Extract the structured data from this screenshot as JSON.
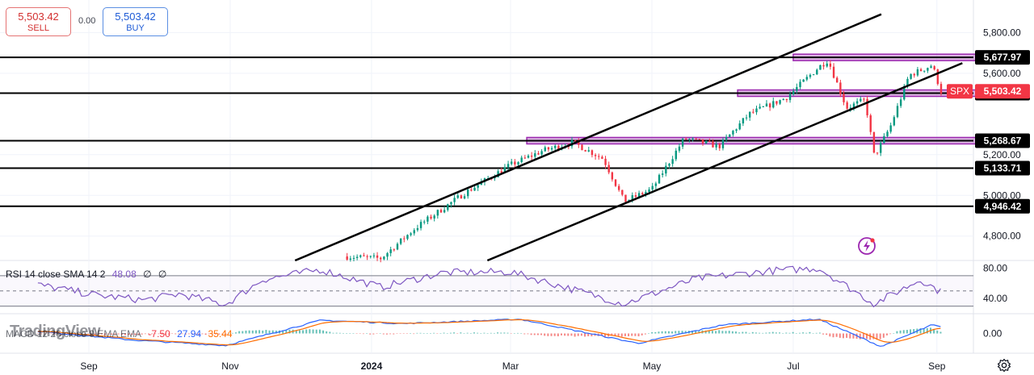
{
  "trade": {
    "sell_price": "5,503.42",
    "sell_label": "SELL",
    "buy_price": "5,503.42",
    "buy_label": "BUY",
    "spread": "0.00"
  },
  "symbol": "SPX",
  "watermark": "TradingView",
  "rsi_legend": {
    "name": "RSI 14 close SMA 14 2",
    "value": "48.08",
    "ma": "∅",
    "extra": "∅"
  },
  "macd_legend": {
    "name": "MACD 12 26 close 9 EMA EMA",
    "hist": "-7.50",
    "macd": "27.94",
    "signal": "35.44"
  },
  "colors": {
    "up": "#089981",
    "down": "#f23645",
    "level_line": "#000000",
    "zone": "#9c27b0",
    "rsi": "#7e57c2",
    "macd": "#2962ff",
    "signal": "#ff6d00",
    "price_tag": "#f23645"
  },
  "chart_data": [
    {
      "type": "candlestick",
      "x_ticks": [
        "Sep",
        "Nov",
        "2024",
        "Mar",
        "May",
        "Jul",
        "Sep"
      ],
      "y_ticks": [
        "5,800.00",
        "5,600.00",
        "5,200.00",
        "5,000.00",
        "4,800.00"
      ],
      "ylim": [
        4680,
        5960
      ],
      "last_price": 5503.42,
      "horizontal_levels": [
        {
          "value": 5677.97,
          "label": "5,677.97"
        },
        {
          "value": 5502.19,
          "label": "5,502.19"
        },
        {
          "value": 5268.67,
          "label": "5,268.67"
        },
        {
          "value": 5133.71,
          "label": "5,133.71"
        },
        {
          "value": 4946.42,
          "label": "4,946.42"
        }
      ],
      "zones": [
        {
          "value": 5677.97,
          "from": "2024-07-01",
          "to": "2024-09-30"
        },
        {
          "value": 5502.19,
          "from": "2024-06-07",
          "to": "2024-09-25"
        },
        {
          "value": 5268.67,
          "from": "2024-03-08",
          "to": "2024-09-25"
        }
      ],
      "channel": [
        {
          "from": [
            "2023-11-29",
            4680
          ],
          "to": [
            "2024-08-08",
            5890
          ]
        },
        {
          "from": [
            "2024-02-20",
            4680
          ],
          "to": [
            "2024-09-12",
            5650
          ]
        }
      ],
      "series": [
        {
          "x": "2023-12-20",
          "y": 4700
        },
        {
          "x": "2024-01-05",
          "y": 4690
        },
        {
          "x": "2024-01-20",
          "y": 4840
        },
        {
          "x": "2024-02-10",
          "y": 5010
        },
        {
          "x": "2024-03-01",
          "y": 5150
        },
        {
          "x": "2024-03-15",
          "y": 5220
        },
        {
          "x": "2024-03-28",
          "y": 5260
        },
        {
          "x": "2024-04-10",
          "y": 5180
        },
        {
          "x": "2024-04-19",
          "y": 4970
        },
        {
          "x": "2024-05-01",
          "y": 5030
        },
        {
          "x": "2024-05-15",
          "y": 5280
        },
        {
          "x": "2024-05-30",
          "y": 5240
        },
        {
          "x": "2024-06-12",
          "y": 5400
        },
        {
          "x": "2024-06-28",
          "y": 5480
        },
        {
          "x": "2024-07-12",
          "y": 5630
        },
        {
          "x": "2024-07-16",
          "y": 5665
        },
        {
          "x": "2024-07-24",
          "y": 5430
        },
        {
          "x": "2024-08-01",
          "y": 5470
        },
        {
          "x": "2024-08-05",
          "y": 5190
        },
        {
          "x": "2024-08-12",
          "y": 5340
        },
        {
          "x": "2024-08-20",
          "y": 5590
        },
        {
          "x": "2024-08-30",
          "y": 5640
        },
        {
          "x": "2024-09-03",
          "y": 5503
        }
      ]
    },
    {
      "type": "line",
      "name": "RSI",
      "y_ticks": [
        "80.00",
        "40.00"
      ],
      "ylim": [
        20,
        90
      ],
      "series": [
        {
          "x": "2023-08-10",
          "y": 58
        },
        {
          "x": "2023-09-05",
          "y": 44
        },
        {
          "x": "2023-09-25",
          "y": 38
        },
        {
          "x": "2023-10-10",
          "y": 46
        },
        {
          "x": "2023-10-30",
          "y": 32
        },
        {
          "x": "2023-11-15",
          "y": 65
        },
        {
          "x": "2023-12-10",
          "y": 78
        },
        {
          "x": "2024-01-05",
          "y": 55
        },
        {
          "x": "2024-02-01",
          "y": 74
        },
        {
          "x": "2024-03-01",
          "y": 75
        },
        {
          "x": "2024-04-19",
          "y": 33
        },
        {
          "x": "2024-05-20",
          "y": 66
        },
        {
          "x": "2024-06-20",
          "y": 76
        },
        {
          "x": "2024-07-12",
          "y": 80
        },
        {
          "x": "2024-08-05",
          "y": 33
        },
        {
          "x": "2024-08-25",
          "y": 65
        },
        {
          "x": "2024-09-03",
          "y": 48
        }
      ]
    },
    {
      "type": "line",
      "name": "MACD",
      "y_ticks": [
        "0.00"
      ],
      "ylim": [
        -90,
        90
      ],
      "series": [
        {
          "x": "2023-08-10",
          "y": 10
        },
        {
          "x": "2023-09-20",
          "y": -30
        },
        {
          "x": "2023-10-30",
          "y": -55
        },
        {
          "x": "2023-12-10",
          "y": 60
        },
        {
          "x": "2024-01-15",
          "y": 45
        },
        {
          "x": "2024-03-05",
          "y": 65
        },
        {
          "x": "2024-04-25",
          "y": -45
        },
        {
          "x": "2024-06-01",
          "y": 40
        },
        {
          "x": "2024-07-12",
          "y": 65
        },
        {
          "x": "2024-08-08",
          "y": -60
        },
        {
          "x": "2024-08-30",
          "y": 40
        },
        {
          "x": "2024-09-03",
          "y": 28
        }
      ]
    }
  ]
}
